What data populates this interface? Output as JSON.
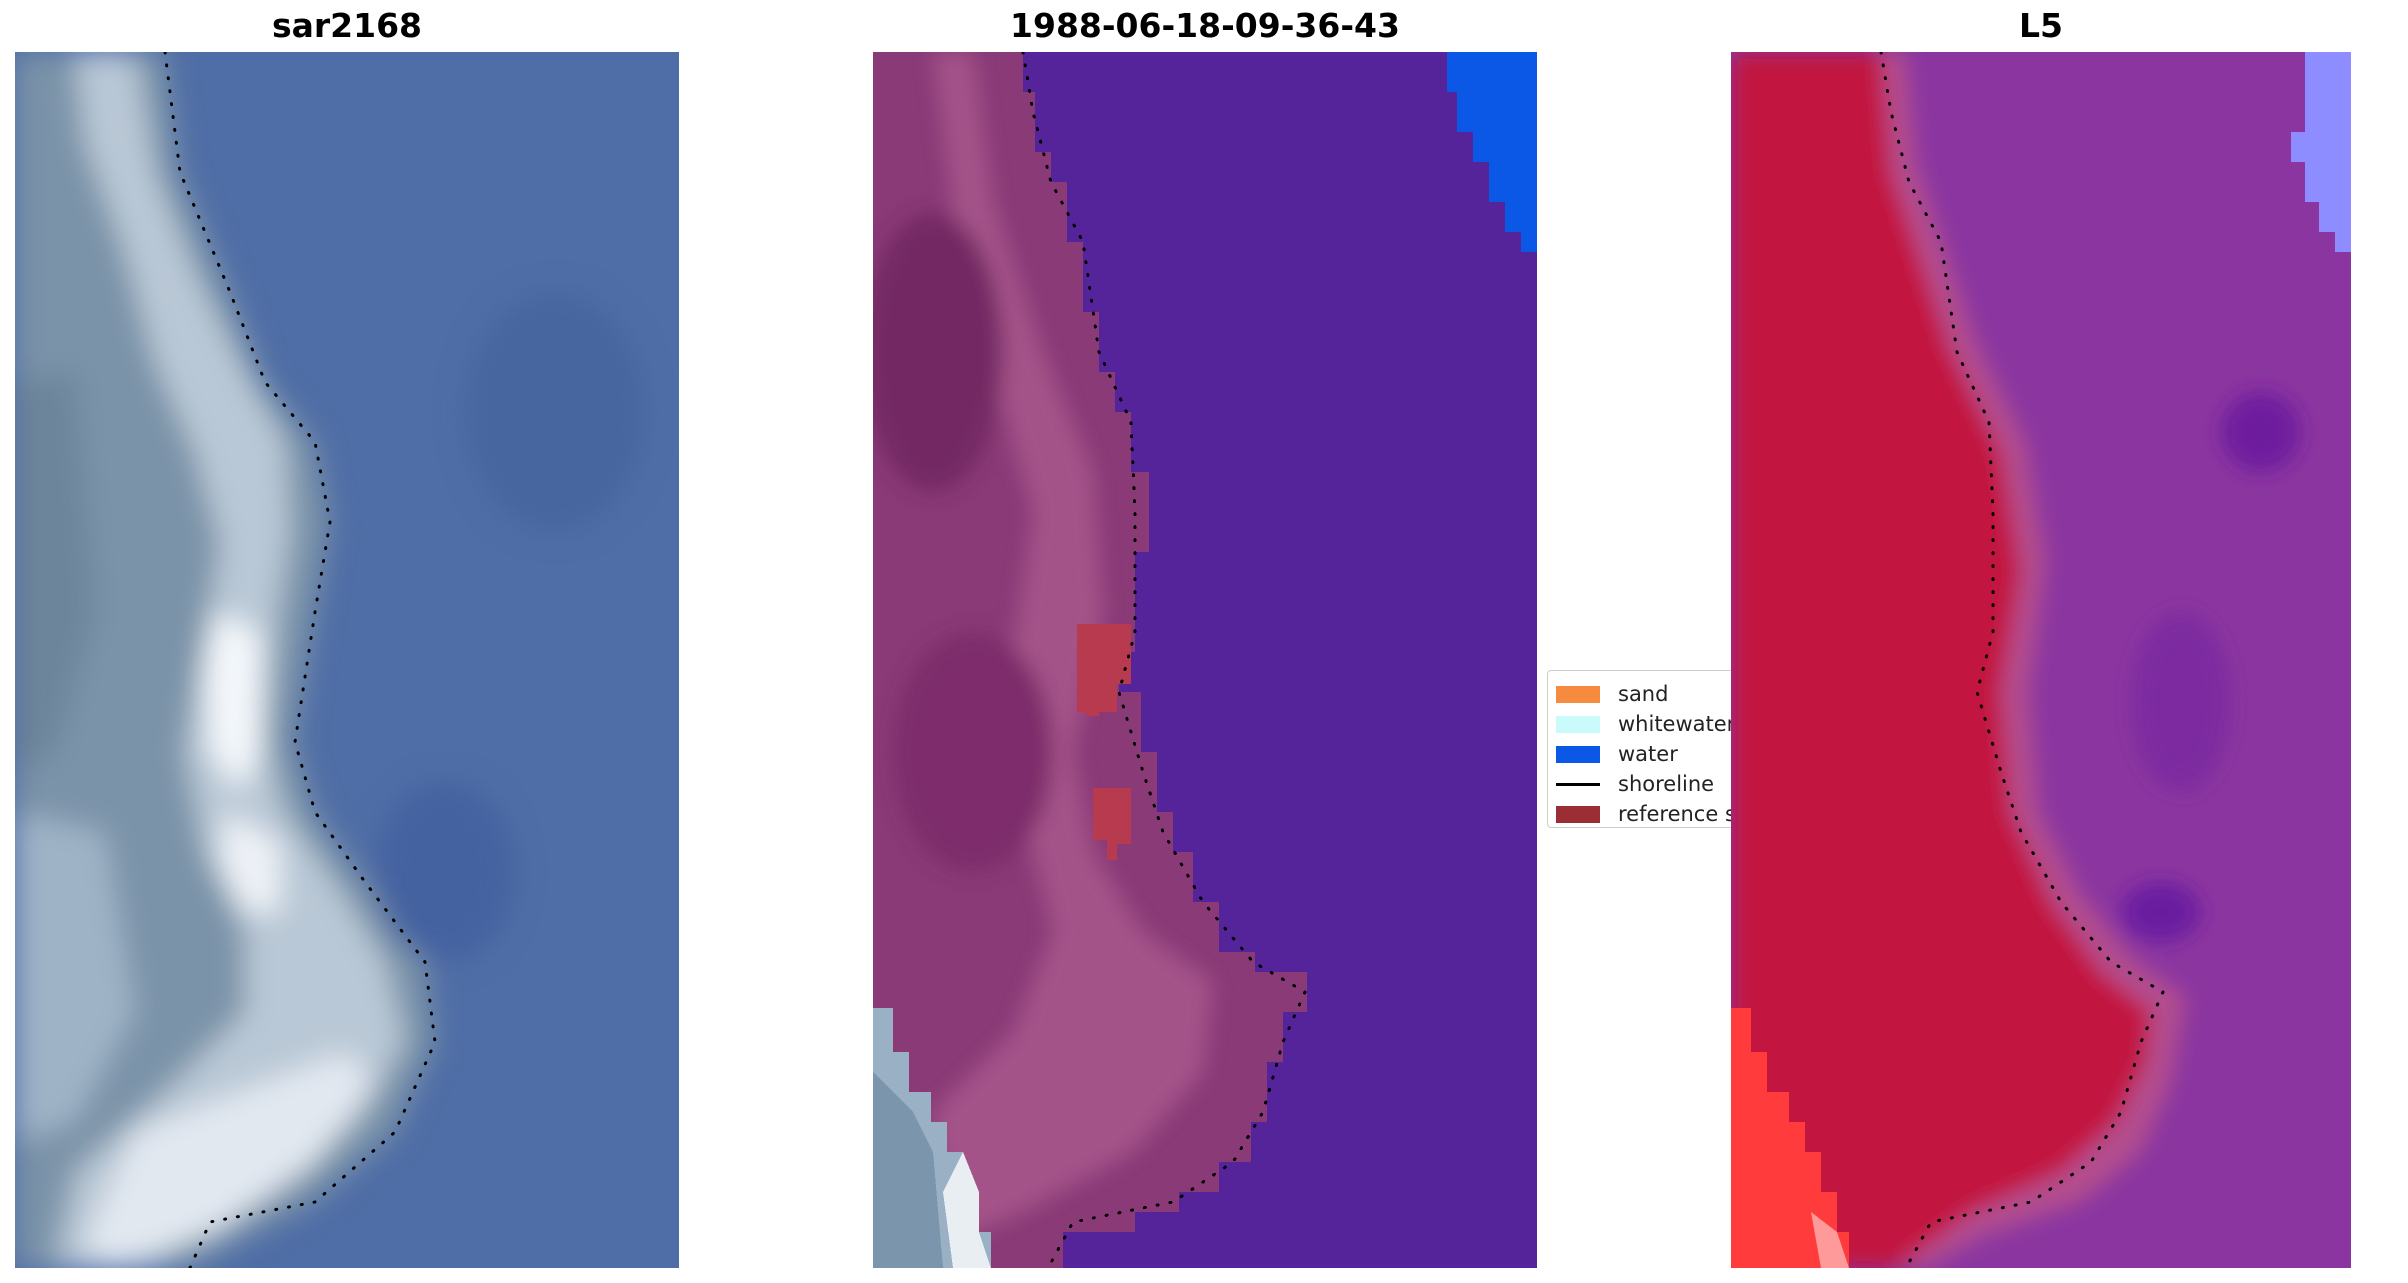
{
  "panels": [
    {
      "title": "sar2168"
    },
    {
      "title": "1988-06-18-09-36-43"
    },
    {
      "title": "L5"
    }
  ],
  "legend": {
    "items": [
      {
        "label": "sand",
        "color": "#f68b3f",
        "kind": "patch"
      },
      {
        "label": "whitewater",
        "color": "#c9fbfb",
        "kind": "patch"
      },
      {
        "label": "water",
        "color": "#0b57e6",
        "kind": "patch"
      },
      {
        "label": "shoreline",
        "color": "#000000",
        "kind": "line"
      },
      {
        "label": "reference s",
        "color": "#9b2e35",
        "kind": "patch"
      }
    ]
  },
  "colors": {
    "sar_water": "#4f6da6",
    "sar_land": "#7d95a8",
    "sar_bright": "#e8eef4",
    "class_land": "#7e2e6a",
    "class_water": "#55239a",
    "class_water_blue": "#0b57e6",
    "class_pale": "#a8b9c8",
    "class_ref": "#b73a4f",
    "l5_land": "#c2123f",
    "l5_water": "#8b36a0",
    "l5_bright": "#ff3b3b",
    "l5_blue": "#8d8dff"
  }
}
